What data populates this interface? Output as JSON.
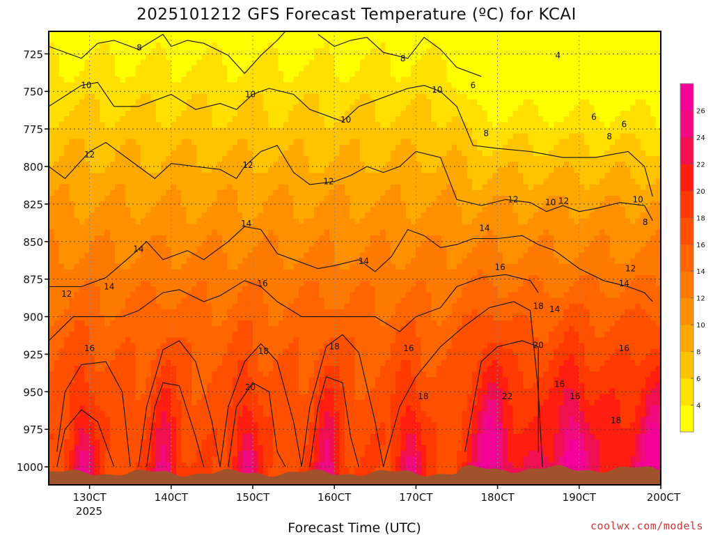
{
  "chart_data": {
    "type": "heatmap",
    "title": "2025101212 GFS Forecast Temperature (ºC) for KCAI",
    "xlabel": "Forecast Time (UTC)",
    "ylabel": "",
    "credit": "coolwx.com/models",
    "x_ticks": [
      {
        "label": "130CT",
        "day": 13
      },
      {
        "label": "140CT",
        "day": 14
      },
      {
        "label": "150CT",
        "day": 15
      },
      {
        "label": "160CT",
        "day": 16
      },
      {
        "label": "170CT",
        "day": 17
      },
      {
        "label": "180CT",
        "day": 18
      },
      {
        "label": "190CT",
        "day": 19
      },
      {
        "label": "200CT",
        "day": 20
      }
    ],
    "x_year_label": "2025",
    "xlim_days": [
      12.5,
      20.0
    ],
    "y_ticks": [
      "725",
      "750",
      "775",
      "800",
      "825",
      "850",
      "875",
      "900",
      "925",
      "950",
      "975",
      "1000"
    ],
    "ylim_hpa": [
      1012,
      710
    ],
    "grid": true,
    "colorbar": {
      "ticks": [
        "4",
        "6",
        "8",
        "10",
        "12",
        "14",
        "16",
        "18",
        "20",
        "22",
        "24",
        "26"
      ],
      "levels": [
        2,
        4,
        6,
        8,
        10,
        12,
        14,
        16,
        18,
        20,
        22,
        24,
        26,
        28
      ],
      "colors": [
        "#FFFF00",
        "#FFE000",
        "#FFC400",
        "#FFA800",
        "#FF9000",
        "#FF7A00",
        "#FF6600",
        "#FF5000",
        "#FF3A00",
        "#FF1E10",
        "#F01050",
        "#F00C80",
        "#F40098"
      ]
    },
    "terrain_color": "#A0522D",
    "contour_labels": [
      {
        "text": "8",
        "day": 13.61,
        "p": 721
      },
      {
        "text": "8",
        "day": 16.84,
        "p": 728
      },
      {
        "text": "4",
        "day": 18.74,
        "p": 726
      },
      {
        "text": "10",
        "day": 12.96,
        "p": 746
      },
      {
        "text": "10",
        "day": 14.97,
        "p": 752
      },
      {
        "text": "10",
        "day": 17.26,
        "p": 749
      },
      {
        "text": "6",
        "day": 17.7,
        "p": 746
      },
      {
        "text": "10",
        "day": 16.14,
        "p": 769
      },
      {
        "text": "6",
        "day": 19.18,
        "p": 767
      },
      {
        "text": "6",
        "day": 19.55,
        "p": 772
      },
      {
        "text": "8",
        "day": 17.86,
        "p": 778
      },
      {
        "text": "8",
        "day": 19.37,
        "p": 780
      },
      {
        "text": "12",
        "day": 13.0,
        "p": 792
      },
      {
        "text": "12",
        "day": 14.94,
        "p": 799
      },
      {
        "text": "12",
        "day": 15.93,
        "p": 810
      },
      {
        "text": "12",
        "day": 18.19,
        "p": 822
      },
      {
        "text": "10",
        "day": 18.65,
        "p": 824
      },
      {
        "text": "12",
        "day": 18.81,
        "p": 823
      },
      {
        "text": "10",
        "day": 19.72,
        "p": 822
      },
      {
        "text": "8",
        "day": 19.81,
        "p": 837
      },
      {
        "text": "14",
        "day": 14.92,
        "p": 838
      },
      {
        "text": "14",
        "day": 17.84,
        "p": 841
      },
      {
        "text": "14",
        "day": 13.6,
        "p": 855
      },
      {
        "text": "14",
        "day": 16.36,
        "p": 863
      },
      {
        "text": "16",
        "day": 18.03,
        "p": 867
      },
      {
        "text": "12",
        "day": 19.63,
        "p": 868
      },
      {
        "text": "14",
        "day": 13.24,
        "p": 880
      },
      {
        "text": "16",
        "day": 15.12,
        "p": 878
      },
      {
        "text": "14",
        "day": 19.55,
        "p": 878
      },
      {
        "text": "12",
        "day": 12.72,
        "p": 885
      },
      {
        "text": "18",
        "day": 18.5,
        "p": 893
      },
      {
        "text": "14",
        "day": 18.7,
        "p": 895
      },
      {
        "text": "20",
        "day": 18.5,
        "p": 919
      },
      {
        "text": "18",
        "day": 15.13,
        "p": 923
      },
      {
        "text": "18",
        "day": 16.0,
        "p": 920
      },
      {
        "text": "16",
        "day": 13.0,
        "p": 921
      },
      {
        "text": "16",
        "day": 16.91,
        "p": 921
      },
      {
        "text": "16",
        "day": 19.55,
        "p": 921
      },
      {
        "text": "20",
        "day": 14.97,
        "p": 947
      },
      {
        "text": "16",
        "day": 18.76,
        "p": 945
      },
      {
        "text": "18",
        "day": 17.09,
        "p": 953
      },
      {
        "text": "22",
        "day": 18.12,
        "p": 953
      },
      {
        "text": "16",
        "day": 18.95,
        "p": 953
      },
      {
        "text": "18",
        "day": 19.45,
        "p": 969
      }
    ],
    "contour_lines_hpa": [
      {
        "level": 8,
        "points": [
          [
            12.5,
            720
          ],
          [
            12.9,
            728
          ],
          [
            13.1,
            718
          ],
          [
            13.3,
            716
          ],
          [
            13.6,
            722
          ],
          [
            13.9,
            712
          ],
          [
            14.0,
            720
          ],
          [
            14.2,
            716
          ],
          [
            14.4,
            718
          ],
          [
            14.7,
            726
          ],
          [
            14.9,
            738
          ],
          [
            15.1,
            726
          ],
          [
            15.3,
            716
          ],
          [
            15.4,
            710
          ]
        ]
      },
      {
        "level": 8,
        "points": [
          [
            15.8,
            712
          ],
          [
            16.0,
            720
          ],
          [
            16.2,
            716
          ],
          [
            16.4,
            714
          ],
          [
            16.6,
            724
          ],
          [
            16.9,
            728
          ],
          [
            17.1,
            714
          ],
          [
            17.3,
            722
          ],
          [
            17.5,
            734
          ],
          [
            17.8,
            740
          ]
        ]
      },
      {
        "level": 10,
        "points": [
          [
            12.5,
            760
          ],
          [
            12.9,
            746
          ],
          [
            13.1,
            744
          ],
          [
            13.3,
            760
          ],
          [
            13.6,
            760
          ],
          [
            13.8,
            756
          ],
          [
            14.0,
            752
          ],
          [
            14.3,
            762
          ],
          [
            14.6,
            758
          ],
          [
            14.8,
            762
          ],
          [
            15.0,
            752
          ],
          [
            15.2,
            748
          ],
          [
            15.5,
            752
          ],
          [
            15.7,
            762
          ],
          [
            15.9,
            766
          ],
          [
            16.1,
            770
          ],
          [
            16.3,
            760
          ],
          [
            16.5,
            756
          ],
          [
            16.7,
            752
          ],
          [
            16.9,
            748
          ],
          [
            17.1,
            746
          ],
          [
            17.3,
            750
          ],
          [
            17.5,
            760
          ],
          [
            17.7,
            786
          ],
          [
            18.0,
            788
          ],
          [
            18.4,
            790
          ],
          [
            18.8,
            794
          ],
          [
            19.2,
            794
          ],
          [
            19.6,
            790
          ],
          [
            19.8,
            800
          ],
          [
            19.9,
            820
          ]
        ]
      },
      {
        "level": 12,
        "points": [
          [
            12.5,
            800
          ],
          [
            12.7,
            808
          ],
          [
            13.0,
            790
          ],
          [
            13.2,
            784
          ],
          [
            13.4,
            792
          ],
          [
            13.6,
            800
          ],
          [
            13.8,
            808
          ],
          [
            14.0,
            798
          ],
          [
            14.3,
            800
          ],
          [
            14.6,
            802
          ],
          [
            14.8,
            808
          ],
          [
            14.9,
            800
          ],
          [
            15.1,
            790
          ],
          [
            15.3,
            786
          ],
          [
            15.5,
            804
          ],
          [
            15.7,
            812
          ],
          [
            16.0,
            810
          ],
          [
            16.2,
            806
          ],
          [
            16.4,
            800
          ],
          [
            16.6,
            804
          ],
          [
            16.8,
            800
          ],
          [
            17.0,
            790
          ],
          [
            17.3,
            794
          ],
          [
            17.5,
            822
          ],
          [
            17.8,
            826
          ],
          [
            18.1,
            822
          ],
          [
            18.4,
            824
          ],
          [
            18.6,
            830
          ],
          [
            18.8,
            826
          ],
          [
            19.0,
            830
          ],
          [
            19.2,
            828
          ],
          [
            19.5,
            824
          ],
          [
            19.8,
            826
          ],
          [
            19.9,
            836
          ]
        ]
      },
      {
        "level": 14,
        "points": [
          [
            12.5,
            880
          ],
          [
            12.9,
            880
          ],
          [
            13.2,
            874
          ],
          [
            13.5,
            860
          ],
          [
            13.7,
            850
          ],
          [
            13.9,
            862
          ],
          [
            14.2,
            856
          ],
          [
            14.4,
            862
          ],
          [
            14.7,
            850
          ],
          [
            14.9,
            840
          ],
          [
            15.1,
            842
          ],
          [
            15.3,
            858
          ],
          [
            15.5,
            862
          ],
          [
            15.8,
            868
          ],
          [
            16.0,
            866
          ],
          [
            16.3,
            862
          ],
          [
            16.5,
            870
          ],
          [
            16.7,
            860
          ],
          [
            16.9,
            842
          ],
          [
            17.1,
            846
          ],
          [
            17.3,
            854
          ],
          [
            17.5,
            852
          ],
          [
            17.7,
            848
          ],
          [
            18.0,
            848
          ],
          [
            18.3,
            846
          ],
          [
            18.5,
            852
          ],
          [
            18.7,
            856
          ],
          [
            18.8,
            860
          ],
          [
            19.0,
            868
          ],
          [
            19.3,
            876
          ],
          [
            19.6,
            880
          ],
          [
            19.8,
            884
          ],
          [
            19.9,
            890
          ]
        ]
      },
      {
        "level": 16,
        "points": [
          [
            12.5,
            916
          ],
          [
            12.8,
            900
          ],
          [
            13.1,
            900
          ],
          [
            13.4,
            900
          ],
          [
            13.6,
            896
          ],
          [
            13.9,
            884
          ],
          [
            14.1,
            882
          ],
          [
            14.4,
            890
          ],
          [
            14.6,
            886
          ],
          [
            14.9,
            876
          ],
          [
            15.1,
            880
          ],
          [
            15.3,
            890
          ],
          [
            15.6,
            900
          ],
          [
            15.9,
            900
          ],
          [
            16.2,
            900
          ],
          [
            16.5,
            900
          ],
          [
            16.8,
            910
          ],
          [
            17.0,
            900
          ],
          [
            17.3,
            894
          ],
          [
            17.5,
            880
          ],
          [
            17.8,
            874
          ],
          [
            18.1,
            872
          ],
          [
            18.4,
            876
          ],
          [
            18.5,
            884
          ]
        ]
      },
      {
        "level": 18,
        "points": [
          [
            12.6,
            990
          ],
          [
            12.7,
            950
          ],
          [
            12.9,
            932
          ],
          [
            13.2,
            930
          ],
          [
            13.4,
            950
          ],
          [
            13.5,
            1000
          ]
        ]
      },
      {
        "level": 18,
        "points": [
          [
            13.6,
            1000
          ],
          [
            13.7,
            960
          ],
          [
            13.9,
            922
          ],
          [
            14.1,
            916
          ],
          [
            14.3,
            930
          ],
          [
            14.5,
            970
          ],
          [
            14.6,
            1000
          ]
        ]
      },
      {
        "level": 18,
        "points": [
          [
            14.6,
            1000
          ],
          [
            14.7,
            960
          ],
          [
            14.9,
            930
          ],
          [
            15.1,
            918
          ],
          [
            15.3,
            930
          ],
          [
            15.5,
            970
          ],
          [
            15.6,
            1000
          ]
        ]
      },
      {
        "level": 18,
        "points": [
          [
            15.6,
            1000
          ],
          [
            15.7,
            960
          ],
          [
            15.9,
            920
          ],
          [
            16.1,
            912
          ],
          [
            16.3,
            924
          ],
          [
            16.5,
            970
          ],
          [
            16.6,
            1000
          ]
        ]
      },
      {
        "level": 18,
        "points": [
          [
            16.6,
            1000
          ],
          [
            16.8,
            960
          ],
          [
            17.0,
            940
          ],
          [
            17.3,
            920
          ],
          [
            17.6,
            906
          ],
          [
            17.9,
            894
          ],
          [
            18.2,
            890
          ],
          [
            18.4,
            896
          ],
          [
            18.5,
            950
          ],
          [
            18.55,
            1000
          ]
        ]
      },
      {
        "level": 20,
        "points": [
          [
            12.6,
            1000
          ],
          [
            12.7,
            975
          ],
          [
            12.9,
            962
          ],
          [
            13.1,
            970
          ],
          [
            13.3,
            1000
          ]
        ]
      },
      {
        "level": 20,
        "points": [
          [
            13.7,
            1000
          ],
          [
            13.8,
            960
          ],
          [
            13.9,
            944
          ],
          [
            14.1,
            946
          ],
          [
            14.3,
            980
          ],
          [
            14.4,
            1000
          ]
        ]
      },
      {
        "level": 20,
        "points": [
          [
            14.7,
            1000
          ],
          [
            14.8,
            960
          ],
          [
            15.0,
            944
          ],
          [
            15.2,
            950
          ],
          [
            15.3,
            990
          ],
          [
            15.4,
            1000
          ]
        ]
      },
      {
        "level": 20,
        "points": [
          [
            15.7,
            1000
          ],
          [
            15.8,
            960
          ],
          [
            15.9,
            940
          ],
          [
            16.1,
            944
          ],
          [
            16.2,
            980
          ],
          [
            16.3,
            1000
          ]
        ]
      },
      {
        "level": 20,
        "points": [
          [
            17.6,
            990
          ],
          [
            17.8,
            930
          ],
          [
            18.0,
            920
          ],
          [
            18.3,
            916
          ],
          [
            18.5,
            920
          ],
          [
            18.5,
            990
          ]
        ]
      }
    ]
  }
}
